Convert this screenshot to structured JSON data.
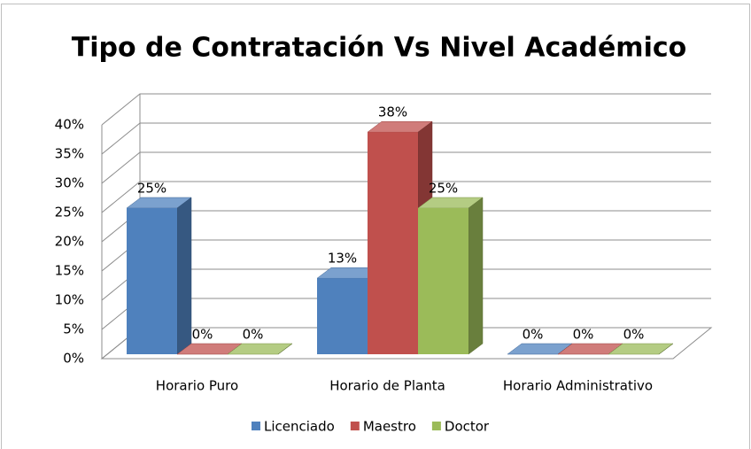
{
  "chart_data": {
    "type": "bar",
    "title": "Tipo de Contratación Vs Nivel Académico",
    "categories": [
      "Horario Puro",
      "Horario de Planta",
      "Horario Administrativo"
    ],
    "series": [
      {
        "name": "Licenciado",
        "color": "#4f81bd",
        "values": [
          25,
          13,
          0
        ],
        "value_labels": [
          "25%",
          "13%",
          "0%"
        ]
      },
      {
        "name": "Maestro",
        "color": "#c0504d",
        "values": [
          0,
          38,
          0
        ],
        "value_labels": [
          "0%",
          "38%",
          "0%"
        ]
      },
      {
        "name": "Doctor",
        "color": "#9bbb59",
        "values": [
          0,
          25,
          0
        ],
        "value_labels": [
          "0%",
          "25%",
          "0%"
        ]
      }
    ],
    "ylim": [
      0,
      40
    ],
    "yticks": [
      {
        "value": 0,
        "label": "0%"
      },
      {
        "value": 5,
        "label": "5%"
      },
      {
        "value": 10,
        "label": "10%"
      },
      {
        "value": 15,
        "label": "15%"
      },
      {
        "value": 20,
        "label": "20%"
      },
      {
        "value": 25,
        "label": "25%"
      },
      {
        "value": 30,
        "label": "30%"
      },
      {
        "value": 35,
        "label": "35%"
      },
      {
        "value": 40,
        "label": "40%"
      }
    ],
    "grid": true,
    "legend": "bottom"
  }
}
